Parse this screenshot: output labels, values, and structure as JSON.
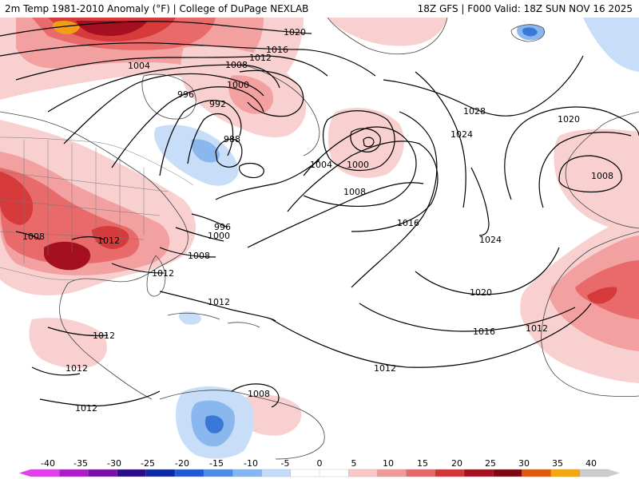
{
  "header": {
    "left": "2m Temp 1981-2010 Anomaly (°F) | College of DuPage NEXLAB",
    "right": "18Z GFS | F000 Valid: 18Z SUN NOV 16 2025"
  },
  "isobar_labels": {
    "l1020_nw": "1020",
    "l1016_nw": "1016",
    "l1012_nw": "1012",
    "l1008_nw": "1008",
    "l1004_nw": "1004",
    "l1000_nw": "1000",
    "l996_nw": "996",
    "l992": "992",
    "l988": "988",
    "l1004_mid": "1004",
    "l1000_mid": "1000",
    "l1008_mid": "1008",
    "l1028": "1028",
    "l1024_a": "1024",
    "l1020_e": "1020",
    "l1008_e": "1008",
    "l1024_b": "1024",
    "l1016_mid": "1016",
    "l996_se": "996",
    "l1000_se": "1000",
    "l1008_se": "1008",
    "l1012_gulf": "1012",
    "l1008_texas": "1008",
    "l1012_texas": "1012",
    "l1012_carib": "1012",
    "l1020_s": "1020",
    "l1016_s": "1016",
    "l1012_africa": "1012",
    "l1012_south": "1012",
    "l1012_mex": "1012",
    "l1012_pac": "1012",
    "l1012_pac2": "1012",
    "l1008_sa": "1008"
  },
  "colorbar": {
    "ticks": [
      "-40",
      "-35",
      "-30",
      "-25",
      "-20",
      "-15",
      "-10",
      "-5",
      "0",
      "5",
      "10",
      "15",
      "20",
      "25",
      "30",
      "35",
      "40"
    ],
    "colors": [
      "#e23ef0",
      "#b01ccc",
      "#7a0ea8",
      "#2a0b8a",
      "#0a2aa8",
      "#1f5ad4",
      "#4c8ce8",
      "#86b6f2",
      "#c4dcf9",
      "#ffffff",
      "#ffffff",
      "#f8c8c8",
      "#f19a9a",
      "#e86868",
      "#d43434",
      "#a70f1e",
      "#7d0812",
      "#e0580c",
      "#f4a60c",
      "#cccccc"
    ]
  },
  "colors": {
    "warm_light": "#f9d0d0",
    "warm_mid": "#f2a0a0",
    "warm_strong": "#e86a6a",
    "warm_deep": "#d63a3a",
    "warm_darkest": "#a51020",
    "orange": "#f39c18",
    "cool_light": "#c8def8",
    "cool_mid": "#8ab8ee",
    "cool_deep": "#3a78d8"
  }
}
